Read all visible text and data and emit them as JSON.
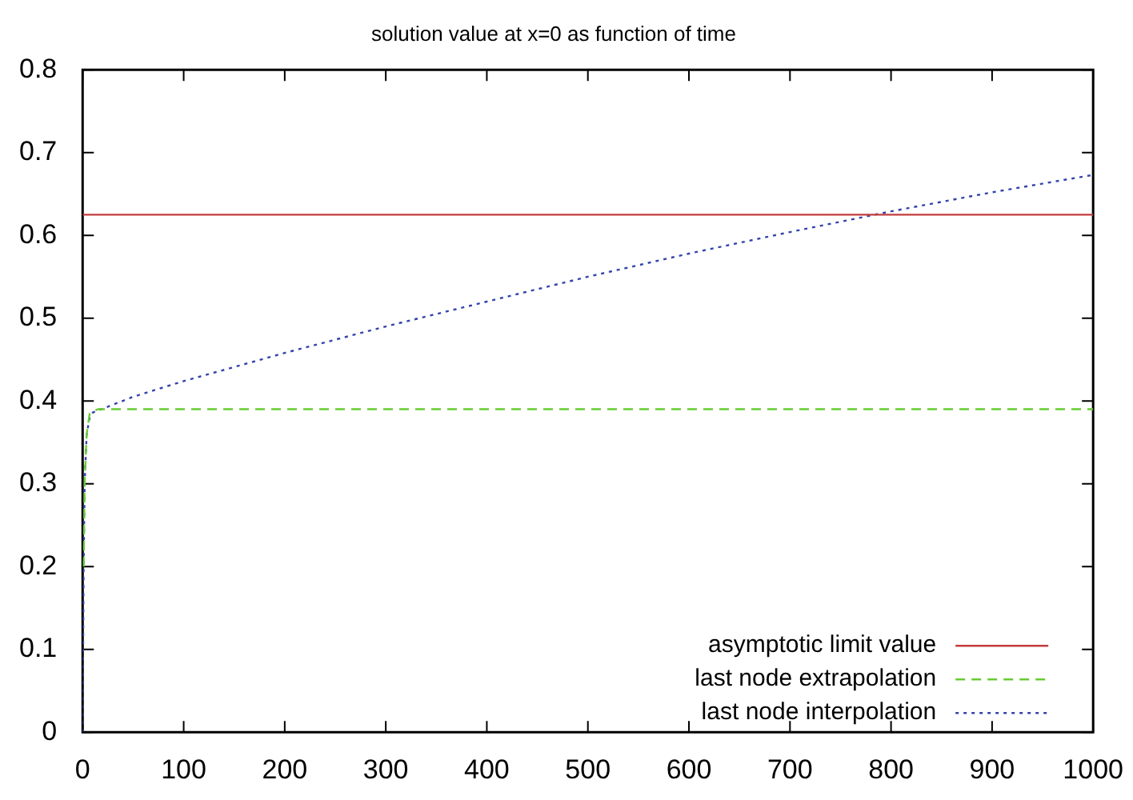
{
  "chart_data": {
    "type": "line",
    "title": "solution value at x=0 as function of time",
    "xlim": [
      0,
      1000
    ],
    "xticks": [
      0,
      100,
      200,
      300,
      400,
      500,
      600,
      700,
      800,
      900,
      1000
    ],
    "ylim": [
      0,
      0.8
    ],
    "yticks": [
      0,
      0.1,
      0.2,
      0.3,
      0.4,
      0.5,
      0.6,
      0.7,
      0.8
    ],
    "grid": false,
    "legend": "bottom right",
    "marker": "none",
    "series": [
      {
        "name": "asymptotic limit value",
        "color": "#c43c3c",
        "line_style": "solid",
        "x": [
          0,
          1000
        ],
        "values": [
          0.625,
          0.625
        ]
      },
      {
        "name": "last node extrapolation",
        "color": "#66cc33",
        "line_style": "dashed",
        "x": [
          1,
          2,
          4,
          7,
          15,
          1000
        ],
        "values": [
          0.2,
          0.3,
          0.36,
          0.385,
          0.39,
          0.39
        ]
      },
      {
        "name": "last node interpolation",
        "color": "#3344aa",
        "line_style": "dotted",
        "x": [
          0,
          1,
          2,
          4,
          7,
          10,
          50,
          100,
          200,
          300,
          400,
          500,
          600,
          700,
          800,
          900,
          1000
        ],
        "values": [
          0,
          0.2,
          0.3,
          0.36,
          0.38,
          0.386,
          0.405,
          0.424,
          0.458,
          0.49,
          0.52,
          0.55,
          0.578,
          0.604,
          0.629,
          0.652,
          0.673
        ]
      }
    ]
  }
}
